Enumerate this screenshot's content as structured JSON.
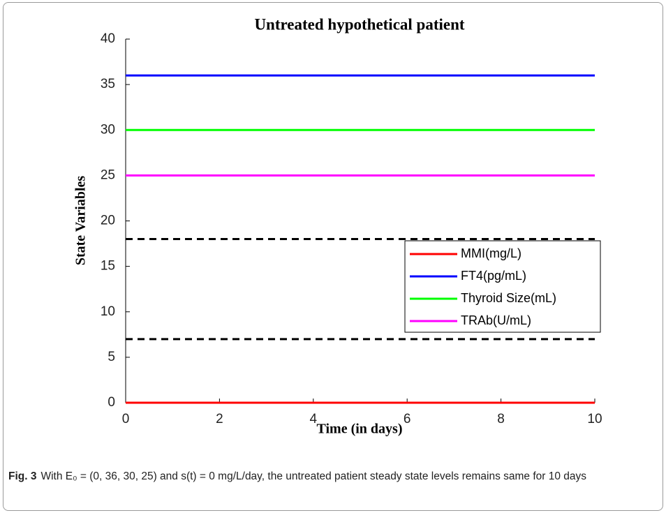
{
  "chart_data": {
    "type": "line",
    "title": "Untreated hypothetical patient",
    "x_label": "Time (in days)",
    "y_label": "State Variables",
    "x": [
      0,
      10
    ],
    "series": [
      {
        "name": "MMI(mg/L)",
        "color": "#ff0000",
        "values": [
          0,
          0
        ]
      },
      {
        "name": "FT4(pg/mL)",
        "color": "#0000ff",
        "values": [
          36,
          36
        ]
      },
      {
        "name": "Thyroid Size(mL)",
        "color": "#00ff00",
        "values": [
          30,
          30
        ]
      },
      {
        "name": "TRAb(U/mL)",
        "color": "#ff00ff",
        "values": [
          25,
          25
        ]
      }
    ],
    "reference_lines": [
      18,
      7
    ],
    "reference_color": "#000000",
    "xlim": [
      0,
      10
    ],
    "xticks": [
      0,
      2,
      4,
      6,
      8,
      10
    ],
    "ylim": [
      0,
      40
    ],
    "yticks": [
      0,
      5,
      10,
      15,
      20,
      25,
      30,
      35,
      40
    ],
    "grid": false,
    "legend": "right"
  },
  "caption": {
    "label": "Fig. 3",
    "text": "With E₀ = (0, 36, 30, 25) and s(t) = 0 mg/L/day, the untreated patient steady state levels remains same for 10 days"
  }
}
